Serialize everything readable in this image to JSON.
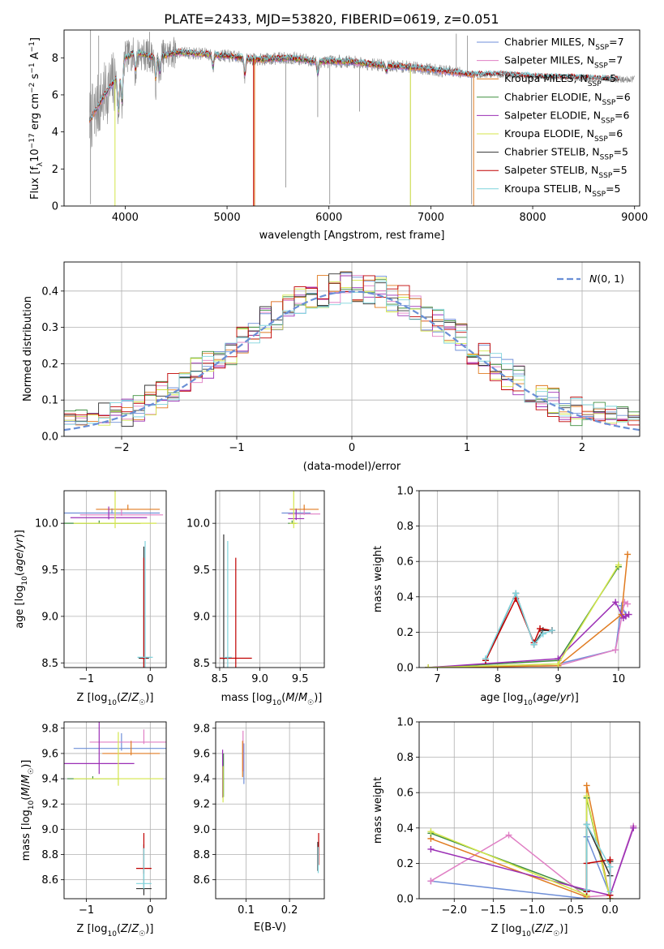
{
  "figure": {
    "title": "PLATE=2433, MJD=53820, FIBERID=0619, z=0.051"
  },
  "colors": {
    "Chabrier MILES": "#6f8fd8",
    "Salpeter MILES": "#e07fc4",
    "Kroupa MILES": "#e07b20",
    "Chabrier ELODIE": "#3f8f3f",
    "Salpeter ELODIE": "#9b2fb5",
    "Kroupa ELODIE": "#d4e64a",
    "Chabrier STELIB": "#333333",
    "Salpeter STELIB": "#c00000",
    "Kroupa STELIB": "#7fd3dc",
    "data": "#888888",
    "normal": "#6a8fd6",
    "grid": "#b0b0b0"
  },
  "chart_data": [
    {
      "type": "line",
      "panel": "spectrum",
      "xlabel": "wavelength [Angstrom, rest frame]",
      "ylabel": "Flux [f",
      "ylabel_units": "10^-17 erg cm^-2 s^-1 A^-1",
      "xlim": [
        3400,
        9050
      ],
      "ylim": [
        0,
        9.5
      ],
      "xticks": [
        "4000",
        "5000",
        "6000",
        "7000",
        "8000",
        "9000"
      ],
      "yticks": [
        "0",
        "2",
        "4",
        "6",
        "8"
      ],
      "grid": false,
      "legend_position": "right",
      "legend": [
        {
          "label": "Chabrier MILES, N",
          "sub": "SSP",
          "suffix": "=7",
          "color": "Chabrier MILES"
        },
        {
          "label": "Salpeter MILES, N",
          "sub": "SSP",
          "suffix": "=7",
          "color": "Salpeter MILES"
        },
        {
          "label": "Kroupa MILES, N",
          "sub": "SSP",
          "suffix": "=5",
          "color": "Kroupa MILES"
        },
        {
          "label": "Chabrier ELODIE, N",
          "sub": "SSP",
          "suffix": "=6",
          "color": "Chabrier ELODIE"
        },
        {
          "label": "Salpeter ELODIE, N",
          "sub": "SSP",
          "suffix": "=6",
          "color": "Salpeter ELODIE"
        },
        {
          "label": "Kroupa ELODIE, N",
          "sub": "SSP",
          "suffix": "=6",
          "color": "Kroupa ELODIE"
        },
        {
          "label": "Chabrier STELIB, N",
          "sub": "SSP",
          "suffix": "=5",
          "color": "Chabrier STELIB"
        },
        {
          "label": "Salpeter STELIB, N",
          "sub": "SSP",
          "suffix": "=5",
          "color": "Salpeter STELIB"
        },
        {
          "label": "Kroupa STELIB, N",
          "sub": "SSP",
          "suffix": "=5",
          "color": "Kroupa STELIB"
        }
      ],
      "data_range": [
        3650,
        9000
      ],
      "series_ranges": {
        "MILES": [
          3650,
          7420
        ],
        "ELODIE": [
          3900,
          6800
        ],
        "STELIB": [
          3650,
          8850
        ]
      },
      "continuum": [
        [
          3650,
          4.6
        ],
        [
          3800,
          6.0
        ],
        [
          3950,
          7.2
        ],
        [
          4000,
          8.0
        ],
        [
          4100,
          8.3
        ],
        [
          4300,
          8.0
        ],
        [
          4500,
          8.3
        ],
        [
          4800,
          8.2
        ],
        [
          5000,
          8.1
        ],
        [
          5300,
          7.9
        ],
        [
          5600,
          8.0
        ],
        [
          5900,
          7.8
        ],
        [
          6200,
          7.8
        ],
        [
          6500,
          7.6
        ],
        [
          6800,
          7.5
        ],
        [
          7100,
          7.3
        ],
        [
          7400,
          7.1
        ],
        [
          7700,
          7.1
        ],
        [
          8000,
          7.0
        ],
        [
          8300,
          6.95
        ],
        [
          8600,
          6.9
        ],
        [
          8850,
          6.85
        ]
      ],
      "absorption_features": [
        [
          3934,
          4.6
        ],
        [
          3969,
          5.2
        ],
        [
          4102,
          7.1
        ],
        [
          4300,
          6.6
        ],
        [
          4340,
          7.0
        ],
        [
          4861,
          7.4
        ],
        [
          5175,
          6.9
        ],
        [
          5890,
          7.0
        ],
        [
          6563,
          7.2
        ]
      ],
      "spikes": [
        [
          3660,
          0.1
        ],
        [
          3660,
          9.5
        ],
        [
          3700,
          3.9
        ],
        [
          3740,
          9.2
        ],
        [
          4240,
          9.4
        ],
        [
          5270,
          0.0
        ],
        [
          5577,
          1.0
        ],
        [
          5890,
          4.8
        ],
        [
          6008,
          0.1
        ],
        [
          6300,
          5.1
        ],
        [
          6800,
          0.1
        ],
        [
          7400,
          0.1
        ],
        [
          7360,
          9.2
        ],
        [
          7250,
          9.3
        ]
      ]
    },
    {
      "type": "line",
      "panel": "residuals",
      "xlabel": "(data-model)/error",
      "ylabel": "Normed distribution",
      "xlim": [
        -2.5,
        2.5
      ],
      "ylim": [
        0,
        0.48
      ],
      "xticks": [
        "−2",
        "−1",
        "0",
        "1",
        "2"
      ],
      "yticks": [
        "0.0",
        "0.1",
        "0.2",
        "0.3",
        "0.4"
      ],
      "grid": true,
      "legend_position": "top-right",
      "legend": [
        {
          "label": "N(0, 1)",
          "color": "normal",
          "dashed": true
        }
      ],
      "bin_edges_start": -2.5,
      "bin_width": 0.1,
      "base_pdf_scale": 1.0,
      "series_noise_seeds": [
        11,
        23,
        37,
        41,
        53,
        67,
        71,
        83,
        97
      ]
    },
    {
      "type": "scatter",
      "panel": "Z-age",
      "xlabel": "Z [log",
      "ylabel": "age  [log",
      "xlim": [
        -1.35,
        0.25
      ],
      "ylim": [
        8.45,
        10.35
      ],
      "xticks": [
        "−1",
        "0"
      ],
      "yticks": [
        "8.5",
        "9.0",
        "9.5",
        "10.0"
      ],
      "grid": true,
      "points": [
        {
          "series": "Chabrier MILES",
          "x": -0.6,
          "y": 10.11,
          "xerr": 0.75,
          "yerr": 0.05
        },
        {
          "series": "Salpeter MILES",
          "x": -0.45,
          "y": 10.09,
          "xerr": 0.65,
          "yerr": 0.06
        },
        {
          "series": "Kroupa MILES",
          "x": -0.35,
          "y": 10.15,
          "xerr": 0.5,
          "yerr": 0.05
        },
        {
          "series": "Chabrier ELODIE",
          "x": -0.8,
          "y": 10.0,
          "xerr": 0.65,
          "yerr": 0.03
        },
        {
          "series": "Salpeter ELODIE",
          "x": -0.65,
          "y": 10.06,
          "xerr": 0.6,
          "yerr": 0.12
        },
        {
          "series": "Kroupa ELODIE",
          "x": -0.55,
          "y": 10.0,
          "xerr": 0.65,
          "yerr": 0.35
        },
        {
          "series": "Chabrier STELIB",
          "x": -0.1,
          "y": 8.55,
          "xerr": 0.08,
          "yerr": 1.2
        },
        {
          "series": "Salpeter STELIB",
          "x": -0.1,
          "y": 8.55,
          "xerr": 0.05,
          "yerr": 1.08
        },
        {
          "series": "Kroupa STELIB",
          "x": -0.08,
          "y": 8.56,
          "xerr": 0.12,
          "yerr": 1.25
        }
      ]
    },
    {
      "type": "scatter",
      "panel": "mass-age",
      "xlabel": "mass [log",
      "ylabel": "",
      "xlim": [
        8.45,
        9.8
      ],
      "ylim": [
        8.45,
        10.35
      ],
      "xticks": [
        "8.5",
        "9.0",
        "9.5"
      ],
      "yticks": [
        "8.5",
        "9.0",
        "9.5",
        "10.0"
      ],
      "grid": true,
      "points": [
        {
          "series": "Chabrier MILES",
          "x": 9.45,
          "y": 10.11,
          "xerr": 0.18,
          "yerr": 0.05
        },
        {
          "series": "Salpeter MILES",
          "x": 9.55,
          "y": 10.1,
          "xerr": 0.2,
          "yerr": 0.06
        },
        {
          "series": "Kroupa MILES",
          "x": 9.55,
          "y": 10.15,
          "xerr": 0.18,
          "yerr": 0.05
        },
        {
          "series": "Chabrier ELODIE",
          "x": 9.4,
          "y": 10.0,
          "xerr": 0.05,
          "yerr": 0.03
        },
        {
          "series": "Salpeter ELODIE",
          "x": 9.45,
          "y": 10.05,
          "xerr": 0.1,
          "yerr": 0.1
        },
        {
          "series": "Kroupa ELODIE",
          "x": 9.42,
          "y": 10.0,
          "xerr": 0.05,
          "yerr": 0.35
        },
        {
          "series": "Chabrier STELIB",
          "x": 8.55,
          "y": 8.55,
          "xerr": 0.05,
          "yerr": 1.33
        },
        {
          "series": "Salpeter STELIB",
          "x": 8.7,
          "y": 8.55,
          "xerr": 0.2,
          "yerr": 1.08
        },
        {
          "series": "Kroupa STELIB",
          "x": 8.6,
          "y": 8.56,
          "xerr": 0.05,
          "yerr": 1.25
        }
      ]
    },
    {
      "type": "line",
      "panel": "age-weight",
      "xlabel": "age  [log",
      "ylabel": "mass weight",
      "xlim": [
        6.7,
        10.35
      ],
      "ylim": [
        0,
        1.0
      ],
      "xticks": [
        "7",
        "8",
        "9",
        "10"
      ],
      "yticks": [
        "0.0",
        "0.2",
        "0.4",
        "0.6",
        "0.8",
        "1.0"
      ],
      "grid": true,
      "series": [
        {
          "name": "Chabrier MILES",
          "x": [
            6.85,
            9.0,
            9.95,
            10.05,
            10.12
          ],
          "y": [
            0.0,
            0.02,
            0.1,
            0.35,
            0.3
          ]
        },
        {
          "name": "Salpeter MILES",
          "x": [
            6.85,
            9.0,
            9.95,
            10.1,
            10.15
          ],
          "y": [
            0.0,
            0.01,
            0.1,
            0.37,
            0.36
          ]
        },
        {
          "name": "Kroupa MILES",
          "x": [
            6.85,
            9.0,
            10.05,
            10.15
          ],
          "y": [
            0.0,
            0.01,
            0.3,
            0.64
          ]
        },
        {
          "name": "Chabrier ELODIE",
          "x": [
            6.85,
            9.0,
            10.0
          ],
          "y": [
            0.0,
            0.04,
            0.57
          ]
        },
        {
          "name": "Salpeter ELODIE",
          "x": [
            6.85,
            9.0,
            9.95,
            10.08,
            10.12,
            10.17
          ],
          "y": [
            0.0,
            0.05,
            0.37,
            0.28,
            0.29,
            0.3
          ]
        },
        {
          "name": "Kroupa ELODIE",
          "x": [
            6.85,
            9.0,
            10.0
          ],
          "y": [
            0.0,
            0.02,
            0.58
          ]
        },
        {
          "name": "Chabrier STELIB",
          "x": [
            7.8,
            8.3,
            8.6,
            8.75,
            8.9
          ],
          "y": [
            0.04,
            0.42,
            0.13,
            0.21,
            0.21
          ]
        },
        {
          "name": "Salpeter STELIB",
          "x": [
            7.8,
            8.3,
            8.6,
            8.7,
            8.9
          ],
          "y": [
            0.04,
            0.39,
            0.14,
            0.22,
            0.21
          ]
        },
        {
          "name": "Kroupa STELIB",
          "x": [
            7.8,
            8.3,
            8.6,
            8.75,
            8.9
          ],
          "y": [
            0.05,
            0.42,
            0.13,
            0.19,
            0.21
          ]
        }
      ]
    },
    {
      "type": "scatter",
      "panel": "Z-mass",
      "xlabel": "Z [log",
      "ylabel": "mass [log",
      "xlim": [
        -1.35,
        0.25
      ],
      "ylim": [
        8.45,
        9.85
      ],
      "xticks": [
        "−1",
        "0"
      ],
      "yticks": [
        "8.6",
        "8.8",
        "9.0",
        "9.2",
        "9.4",
        "9.6",
        "9.8"
      ],
      "grid": true,
      "points": [
        {
          "series": "Chabrier MILES",
          "x": -0.45,
          "y": 9.64,
          "xerr": 0.75,
          "yerr": 0.12
        },
        {
          "series": "Salpeter MILES",
          "x": -0.1,
          "y": 9.69,
          "xerr": 0.85,
          "yerr": 0.1
        },
        {
          "series": "Kroupa MILES",
          "x": -0.3,
          "y": 9.6,
          "xerr": 0.45,
          "yerr": 0.1
        },
        {
          "series": "Chabrier ELODIE",
          "x": -0.9,
          "y": 9.4,
          "xerr": 0.4,
          "yerr": 0.02
        },
        {
          "series": "Salpeter ELODIE",
          "x": -0.8,
          "y": 9.52,
          "xerr": 0.55,
          "yerr": 0.55
        },
        {
          "series": "Kroupa ELODIE",
          "x": -0.5,
          "y": 9.4,
          "xerr": 0.7,
          "yerr": 0.37
        },
        {
          "series": "Chabrier STELIB",
          "x": -0.1,
          "y": 8.53,
          "xerr": 0.12,
          "yerr": 0.35
        },
        {
          "series": "Salpeter STELIB",
          "x": -0.1,
          "y": 8.69,
          "xerr": 0.12,
          "yerr": 0.28
        },
        {
          "series": "Kroupa STELIB",
          "x": -0.1,
          "y": 8.57,
          "xerr": 0.12,
          "yerr": 0.28
        }
      ]
    },
    {
      "type": "scatter",
      "panel": "EBV-mass",
      "xlabel": "E(B-V)",
      "ylabel": "",
      "xlim": [
        0.03,
        0.28
      ],
      "ylim": [
        8.45,
        9.85
      ],
      "xticks": [
        "0.1",
        "0.2"
      ],
      "yticks": [
        "8.6",
        "8.8",
        "9.0",
        "9.2",
        "9.4",
        "9.6",
        "9.8"
      ],
      "grid": true,
      "points": [
        {
          "series": "Chabrier MILES",
          "x": 0.095,
          "y": 9.4,
          "xerr": 0.0,
          "yerr": 0.28
        },
        {
          "series": "Salpeter MILES",
          "x": 0.093,
          "y": 9.5,
          "xerr": 0.0,
          "yerr": 0.28
        },
        {
          "series": "Kroupa MILES",
          "x": 0.092,
          "y": 9.45,
          "xerr": 0.0,
          "yerr": 0.25
        },
        {
          "series": "Chabrier ELODIE",
          "x": 0.048,
          "y": 9.3,
          "xerr": 0.0,
          "yerr": 0.3
        },
        {
          "series": "Salpeter ELODIE",
          "x": 0.046,
          "y": 9.3,
          "xerr": 0.0,
          "yerr": 0.33
        },
        {
          "series": "Kroupa ELODIE",
          "x": 0.047,
          "y": 9.25,
          "xerr": 0.0,
          "yerr": 0.25
        },
        {
          "series": "Chabrier STELIB",
          "x": 0.265,
          "y": 8.7,
          "xerr": 0.0,
          "yerr": 0.2
        },
        {
          "series": "Salpeter STELIB",
          "x": 0.267,
          "y": 8.75,
          "xerr": 0.0,
          "yerr": 0.22
        },
        {
          "series": "Kroupa STELIB",
          "x": 0.266,
          "y": 8.68,
          "xerr": 0.0,
          "yerr": 0.18
        }
      ]
    },
    {
      "type": "line",
      "panel": "Z-weight",
      "xlabel": "Z [log",
      "ylabel": "mass weight",
      "xlim": [
        -2.45,
        0.38
      ],
      "ylim": [
        0,
        1.0
      ],
      "xticks": [
        "−2.0",
        "−1.5",
        "−1.0",
        "−0.5",
        "0.0"
      ],
      "yticks": [
        "0.0",
        "0.2",
        "0.4",
        "0.6",
        "0.8",
        "1.0"
      ],
      "grid": true,
      "series": [
        {
          "name": "Chabrier MILES",
          "x": [
            -2.3,
            -0.3,
            -0.3,
            0.0,
            0.3
          ],
          "y": [
            0.1,
            0.0,
            0.35,
            0.02,
            0.41
          ]
        },
        {
          "name": "Salpeter MILES",
          "x": [
            -2.3,
            -1.3,
            -0.3,
            0.0,
            0.3
          ],
          "y": [
            0.1,
            0.36,
            0.01,
            0.02,
            0.41
          ]
        },
        {
          "name": "Kroupa MILES",
          "x": [
            -2.3,
            -0.3,
            -0.3,
            0.0
          ],
          "y": [
            0.34,
            0.01,
            0.64,
            0.0
          ]
        },
        {
          "name": "Chabrier ELODIE",
          "x": [
            -2.3,
            -0.3,
            -0.3,
            0.0
          ],
          "y": [
            0.37,
            0.04,
            0.57,
            0.0
          ]
        },
        {
          "name": "Salpeter ELODIE",
          "x": [
            -2.3,
            -0.3,
            0.0,
            0.3
          ],
          "y": [
            0.28,
            0.05,
            0.02,
            0.4
          ]
        },
        {
          "name": "Kroupa ELODIE",
          "x": [
            -2.3,
            -0.3,
            -0.3,
            0.0
          ],
          "y": [
            0.38,
            0.02,
            0.58,
            0.0
          ]
        },
        {
          "name": "Chabrier STELIB",
          "x": [
            -0.3,
            -0.3,
            0.0,
            0.0
          ],
          "y": [
            0.04,
            0.42,
            0.13,
            0.21
          ]
        },
        {
          "name": "Salpeter STELIB",
          "x": [
            -0.3,
            -0.3,
            0.0,
            0.0
          ],
          "y": [
            0.04,
            0.2,
            0.22,
            0.02
          ]
        },
        {
          "name": "Kroupa STELIB",
          "x": [
            -0.3,
            -0.3,
            0.0,
            0.0
          ],
          "y": [
            0.05,
            0.42,
            0.18,
            0.04
          ]
        }
      ]
    }
  ]
}
